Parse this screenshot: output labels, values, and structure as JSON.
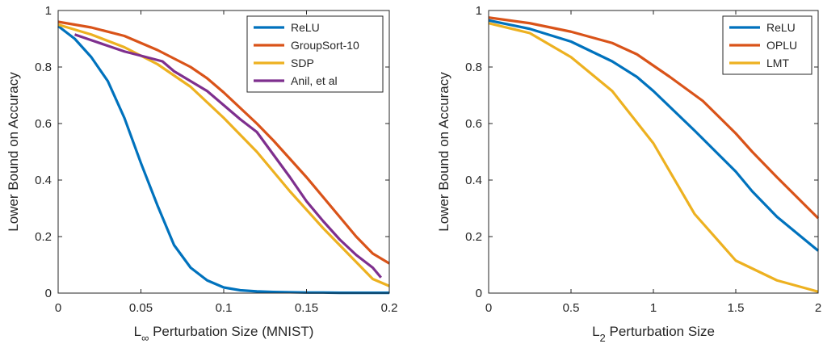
{
  "chart_data": [
    {
      "type": "line",
      "title": "",
      "xlabel": {
        "main": "L",
        "sub": "∞",
        "rest": " Perturbation Size (MNIST)"
      },
      "ylabel": "Lower Bound on Accuracy",
      "xlim": [
        0,
        0.2
      ],
      "ylim": [
        0,
        1
      ],
      "xticks": [
        0,
        0.05,
        0.1,
        0.15,
        0.2
      ],
      "xtick_labels": [
        "0",
        "0.05",
        "0.1",
        "0.15",
        "0.2"
      ],
      "yticks": [
        0,
        0.2,
        0.4,
        0.6,
        0.8,
        1
      ],
      "ytick_labels": [
        "0",
        "0.2",
        "0.4",
        "0.6",
        "0.8",
        "1"
      ],
      "grid": false,
      "legend_position": "top-right",
      "series": [
        {
          "name": "ReLU",
          "color": "#0072BD",
          "x": [
            0,
            0.01,
            0.02,
            0.03,
            0.04,
            0.05,
            0.06,
            0.07,
            0.08,
            0.09,
            0.1,
            0.11,
            0.12,
            0.13,
            0.14,
            0.15,
            0.16,
            0.17,
            0.18,
            0.19,
            0.2
          ],
          "y": [
            0.945,
            0.9,
            0.835,
            0.75,
            0.62,
            0.46,
            0.31,
            0.17,
            0.09,
            0.045,
            0.02,
            0.01,
            0.006,
            0.004,
            0.003,
            0.002,
            0.002,
            0.001,
            0.001,
            0.001,
            0.001
          ]
        },
        {
          "name": "GroupSort-10",
          "color": "#D95319",
          "x": [
            0,
            0.02,
            0.04,
            0.06,
            0.08,
            0.09,
            0.1,
            0.12,
            0.13,
            0.15,
            0.17,
            0.18,
            0.19,
            0.2
          ],
          "y": [
            0.96,
            0.94,
            0.91,
            0.86,
            0.8,
            0.76,
            0.71,
            0.6,
            0.54,
            0.41,
            0.27,
            0.2,
            0.14,
            0.105
          ]
        },
        {
          "name": "SDP",
          "color": "#EDB120",
          "x": [
            0,
            0.02,
            0.04,
            0.06,
            0.08,
            0.1,
            0.12,
            0.14,
            0.16,
            0.18,
            0.19,
            0.2
          ],
          "y": [
            0.95,
            0.915,
            0.87,
            0.81,
            0.73,
            0.62,
            0.5,
            0.36,
            0.23,
            0.11,
            0.05,
            0.025
          ]
        },
        {
          "name": "Anil, et al",
          "color": "#7E2F8E",
          "x": [
            0.01,
            0.02,
            0.03,
            0.04,
            0.05,
            0.063,
            0.07,
            0.08,
            0.09,
            0.1,
            0.11,
            0.12,
            0.13,
            0.14,
            0.15,
            0.16,
            0.17,
            0.18,
            0.19,
            0.195
          ],
          "y": [
            0.915,
            0.895,
            0.875,
            0.855,
            0.84,
            0.82,
            0.785,
            0.75,
            0.715,
            0.665,
            0.615,
            0.57,
            0.49,
            0.41,
            0.325,
            0.255,
            0.19,
            0.135,
            0.09,
            0.055
          ]
        }
      ]
    },
    {
      "type": "line",
      "title": "",
      "xlabel": {
        "main": "L",
        "sub": "2",
        "rest": " Perturbation Size"
      },
      "ylabel": "Lower Bound on Accuracy",
      "xlim": [
        0,
        2
      ],
      "ylim": [
        0,
        1
      ],
      "xticks": [
        0,
        0.5,
        1,
        1.5,
        2
      ],
      "xtick_labels": [
        "0",
        "0.5",
        "1",
        "1.5",
        "2"
      ],
      "yticks": [
        0,
        0.2,
        0.4,
        0.6,
        0.8,
        1
      ],
      "ytick_labels": [
        "0",
        "0.2",
        "0.4",
        "0.6",
        "0.8",
        "1"
      ],
      "grid": false,
      "legend_position": "top-right",
      "series": [
        {
          "name": "ReLU",
          "color": "#0072BD",
          "x": [
            0,
            0.25,
            0.5,
            0.75,
            0.9,
            1,
            1.25,
            1.5,
            1.6,
            1.75,
            2
          ],
          "y": [
            0.965,
            0.935,
            0.89,
            0.82,
            0.765,
            0.715,
            0.575,
            0.43,
            0.36,
            0.27,
            0.15
          ]
        },
        {
          "name": "OPLU",
          "color": "#D95319",
          "x": [
            0,
            0.25,
            0.5,
            0.75,
            0.9,
            1,
            1.1,
            1.3,
            1.5,
            1.6,
            1.75,
            2
          ],
          "y": [
            0.975,
            0.955,
            0.925,
            0.885,
            0.845,
            0.805,
            0.765,
            0.68,
            0.565,
            0.5,
            0.41,
            0.265
          ]
        },
        {
          "name": "LMT",
          "color": "#EDB120",
          "x": [
            0,
            0.25,
            0.5,
            0.75,
            1,
            1.25,
            1.5,
            1.75,
            2
          ],
          "y": [
            0.955,
            0.92,
            0.835,
            0.715,
            0.53,
            0.28,
            0.115,
            0.045,
            0.005
          ]
        }
      ]
    }
  ]
}
